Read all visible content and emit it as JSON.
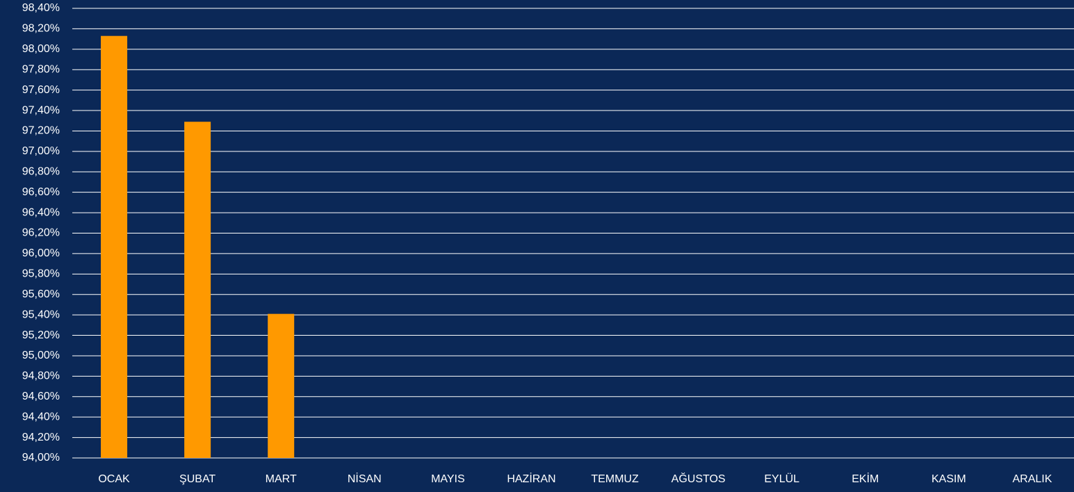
{
  "chart_data": {
    "type": "bar",
    "categories": [
      "OCAK",
      "ŞUBAT",
      "MART",
      "NİSAN",
      "MAYIS",
      "HAZİRAN",
      "TEMMUZ",
      "AĞUSTOS",
      "EYLÜL",
      "EKİM",
      "KASIM",
      "ARALIK"
    ],
    "values": [
      98.13,
      97.29,
      95.41,
      null,
      null,
      null,
      null,
      null,
      null,
      null,
      null,
      null
    ],
    "color": "#ff9900",
    "ylim": [
      94,
      98.4
    ],
    "yticks": [
      {
        "value": 94,
        "label": "94,00%"
      },
      {
        "value": 94.2,
        "label": "94,20%"
      },
      {
        "value": 94.4,
        "label": "94,40%"
      },
      {
        "value": 94.6,
        "label": "94,60%"
      },
      {
        "value": 94.8,
        "label": "94,80%"
      },
      {
        "value": 95,
        "label": "95,00%"
      },
      {
        "value": 95.2,
        "label": "95,20%"
      },
      {
        "value": 95.4,
        "label": "95,40%"
      },
      {
        "value": 95.6,
        "label": "95,60%"
      },
      {
        "value": 95.8,
        "label": "95,80%"
      },
      {
        "value": 96,
        "label": "96,00%"
      },
      {
        "value": 96.2,
        "label": "96,20%"
      },
      {
        "value": 96.4,
        "label": "96,40%"
      },
      {
        "value": 96.6,
        "label": "96,60%"
      },
      {
        "value": 96.8,
        "label": "96,80%"
      },
      {
        "value": 97,
        "label": "97,00%"
      },
      {
        "value": 97.2,
        "label": "97,20%"
      },
      {
        "value": 97.4,
        "label": "97,40%"
      },
      {
        "value": 97.6,
        "label": "97,60%"
      },
      {
        "value": 97.8,
        "label": "97,80%"
      },
      {
        "value": 98,
        "label": "98,00%"
      },
      {
        "value": 98.2,
        "label": "98,20%"
      },
      {
        "value": 98.4,
        "label": "98,40%"
      }
    ],
    "grid": true
  }
}
